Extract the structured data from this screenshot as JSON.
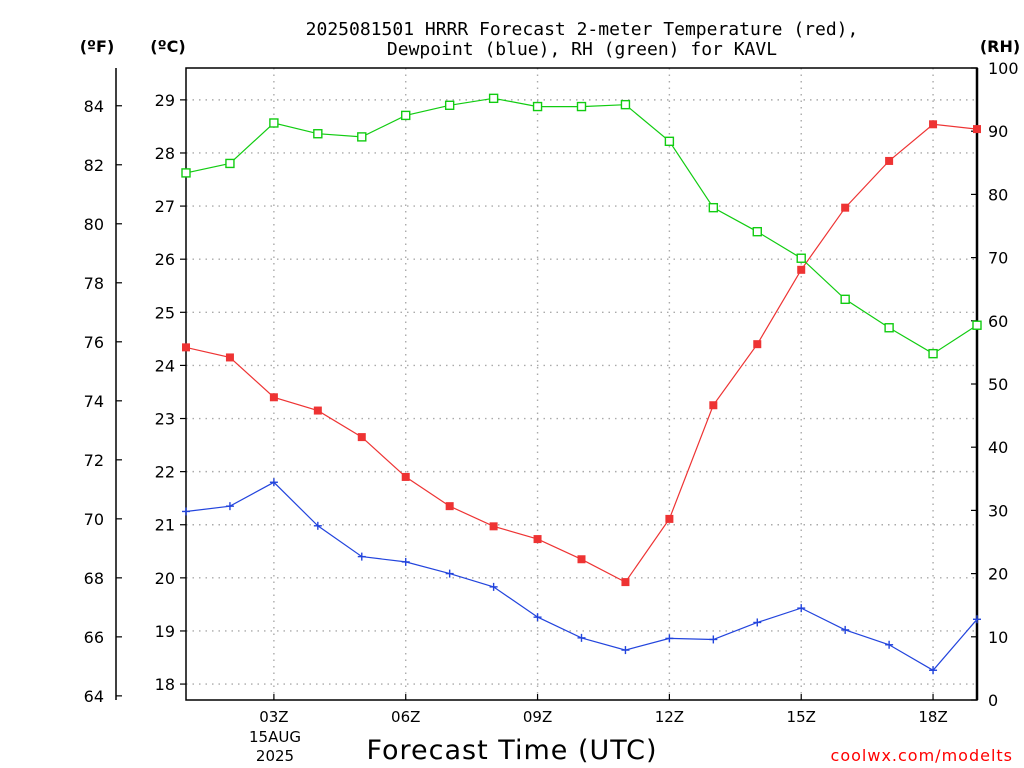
{
  "chart_data": {
    "type": "line",
    "title_line1": "2025081501 HRRR Forecast 2-meter Temperature (red),",
    "title_line2": "Dewpoint (blue), RH (green) for KAVL",
    "xlabel": "Forecast Time (UTC)",
    "left_unit_f": "(ºF)",
    "left_unit_c": "(ºC)",
    "right_unit": "(RH)",
    "x_hours": [
      1,
      2,
      3,
      4,
      5,
      6,
      7,
      8,
      9,
      10,
      11,
      12,
      13,
      14,
      15,
      16,
      17,
      18,
      19
    ],
    "x_ticks": [
      {
        "hour": 3,
        "label": "03Z"
      },
      {
        "hour": 6,
        "label": "06Z"
      },
      {
        "hour": 9,
        "label": "09Z"
      },
      {
        "hour": 12,
        "label": "12Z"
      },
      {
        "hour": 15,
        "label": "15Z"
      },
      {
        "hour": 18,
        "label": "18Z"
      }
    ],
    "date_line1": "15AUG",
    "date_line2": "2025",
    "x_range": [
      1,
      19
    ],
    "celsius_range": [
      17.7,
      29.6
    ],
    "celsius_ticks": [
      18,
      19,
      20,
      21,
      22,
      23,
      24,
      25,
      26,
      27,
      28,
      29
    ],
    "fahrenheit_ticks": [
      64,
      66,
      68,
      70,
      72,
      74,
      76,
      78,
      80,
      82,
      84
    ],
    "rh_range": [
      0,
      100
    ],
    "rh_ticks": [
      0,
      10,
      20,
      30,
      40,
      50,
      60,
      70,
      80,
      90,
      100
    ],
    "grid": true,
    "colors": {
      "temperature": "#ee3333",
      "dewpoint": "#2244dd",
      "rh": "#11cc11"
    },
    "series": [
      {
        "key": "temperature",
        "unit": "C",
        "values": [
          24.34,
          24.15,
          23.4,
          23.15,
          22.65,
          21.9,
          21.35,
          20.97,
          20.73,
          20.35,
          19.92,
          21.11,
          23.25,
          24.4,
          25.8,
          26.97,
          27.85,
          28.54,
          28.45
        ]
      },
      {
        "key": "dewpoint",
        "unit": "C",
        "values": [
          21.25,
          21.35,
          21.8,
          20.98,
          20.4,
          20.3,
          20.08,
          19.83,
          19.26,
          18.87,
          18.64,
          18.86,
          18.84,
          19.16,
          19.43,
          19.02,
          18.74,
          18.26,
          19.22
        ]
      },
      {
        "key": "rh",
        "unit": "%",
        "values": [
          83.4,
          84.9,
          91.3,
          89.6,
          89.1,
          92.5,
          94.1,
          95.2,
          93.9,
          93.9,
          94.2,
          88.4,
          77.9,
          74.1,
          69.9,
          63.4,
          58.9,
          54.8,
          59.3
        ]
      }
    ],
    "credit": "coolwx.com/modelts"
  }
}
